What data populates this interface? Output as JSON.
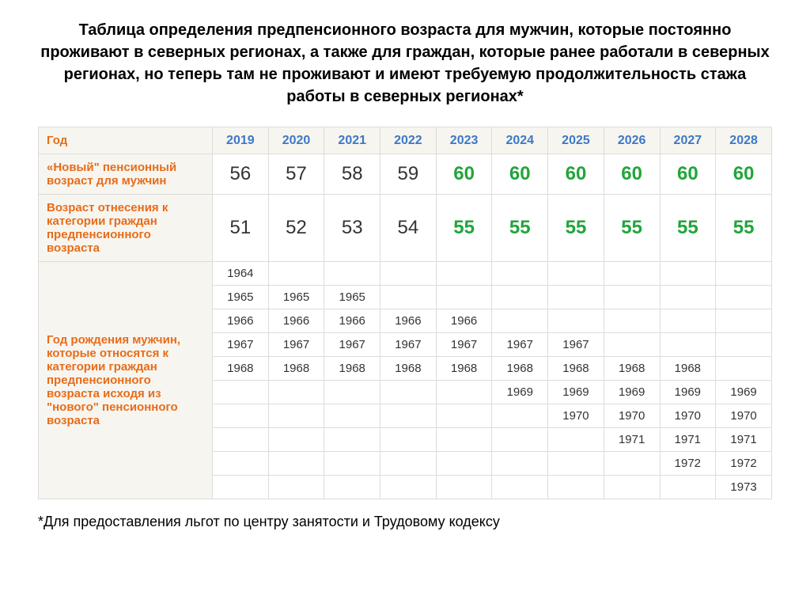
{
  "title": "Таблица определения предпенсионного возраста для мужчин, которые постоянно проживают в  северных регионах, а также для граждан, которые ранее работали в северных регионах, но теперь там не проживают и имеют требуемую продолжительность стажа работы в северных регионах*",
  "footnote": "*Для предоставления льгот по центру занятости и Трудовому кодексу",
  "row_label_year": "Год",
  "years": [
    "2019",
    "2020",
    "2021",
    "2022",
    "2023",
    "2024",
    "2025",
    "2026",
    "2027",
    "2028"
  ],
  "row1": {
    "label": "«Новый\" пенсионный возраст для мужчин",
    "cells": [
      {
        "v": "56",
        "c": "black"
      },
      {
        "v": "57",
        "c": "black"
      },
      {
        "v": "58",
        "c": "black"
      },
      {
        "v": "59",
        "c": "black"
      },
      {
        "v": "60",
        "c": "green"
      },
      {
        "v": "60",
        "c": "green"
      },
      {
        "v": "60",
        "c": "green"
      },
      {
        "v": "60",
        "c": "green"
      },
      {
        "v": "60",
        "c": "green"
      },
      {
        "v": "60",
        "c": "green"
      }
    ]
  },
  "row2": {
    "label": "Возраст отнесения к категории граждан предпенсионного возраста",
    "cells": [
      {
        "v": "51",
        "c": "black"
      },
      {
        "v": "52",
        "c": "black"
      },
      {
        "v": "53",
        "c": "black"
      },
      {
        "v": "54",
        "c": "black"
      },
      {
        "v": "55",
        "c": "green"
      },
      {
        "v": "55",
        "c": "green"
      },
      {
        "v": "55",
        "c": "green"
      },
      {
        "v": "55",
        "c": "green"
      },
      {
        "v": "55",
        "c": "green"
      },
      {
        "v": "55",
        "c": "green"
      }
    ]
  },
  "row3": {
    "label": "Год рождения мужчин, которые относятся к категории граждан предпенсионного возраста исходя из \"нового\" пенсионного возраста",
    "rows": [
      [
        "1964",
        "",
        "",
        "",
        "",
        "",
        "",
        "",
        "",
        ""
      ],
      [
        "1965",
        "1965",
        "1965",
        "",
        "",
        "",
        "",
        "",
        "",
        ""
      ],
      [
        "1966",
        "1966",
        "1966",
        "1966",
        "1966",
        "",
        "",
        "",
        "",
        ""
      ],
      [
        "1967",
        "1967",
        "1967",
        "1967",
        "1967",
        "1967",
        "1967",
        "",
        "",
        ""
      ],
      [
        "1968",
        "1968",
        "1968",
        "1968",
        "1968",
        "1968",
        "1968",
        "1968",
        "1968",
        ""
      ],
      [
        "",
        "",
        "",
        "",
        "",
        "1969",
        "1969",
        "1969",
        "1969",
        "1969"
      ],
      [
        "",
        "",
        "",
        "",
        "",
        "",
        "1970",
        "1970",
        "1970",
        "1970"
      ],
      [
        "",
        "",
        "",
        "",
        "",
        "",
        "",
        "1971",
        "1971",
        "1971"
      ],
      [
        "",
        "",
        "",
        "",
        "",
        "",
        "",
        "",
        "1972",
        "1972"
      ],
      [
        "",
        "",
        "",
        "",
        "",
        "",
        "",
        "",
        "",
        "1973"
      ]
    ]
  },
  "colors": {
    "header_blue": "#3c78c8",
    "label_orange": "#e86c1a",
    "value_green": "#22a53a",
    "value_black": "#333333",
    "bg_beige": "#f7f5ef",
    "border": "#dcdcdc"
  },
  "fonts": {
    "title_size_pt": 20,
    "label_size_pt": 15,
    "big_value_size_pt": 24,
    "small_value_size_pt": 15,
    "footnote_size_pt": 18
  }
}
